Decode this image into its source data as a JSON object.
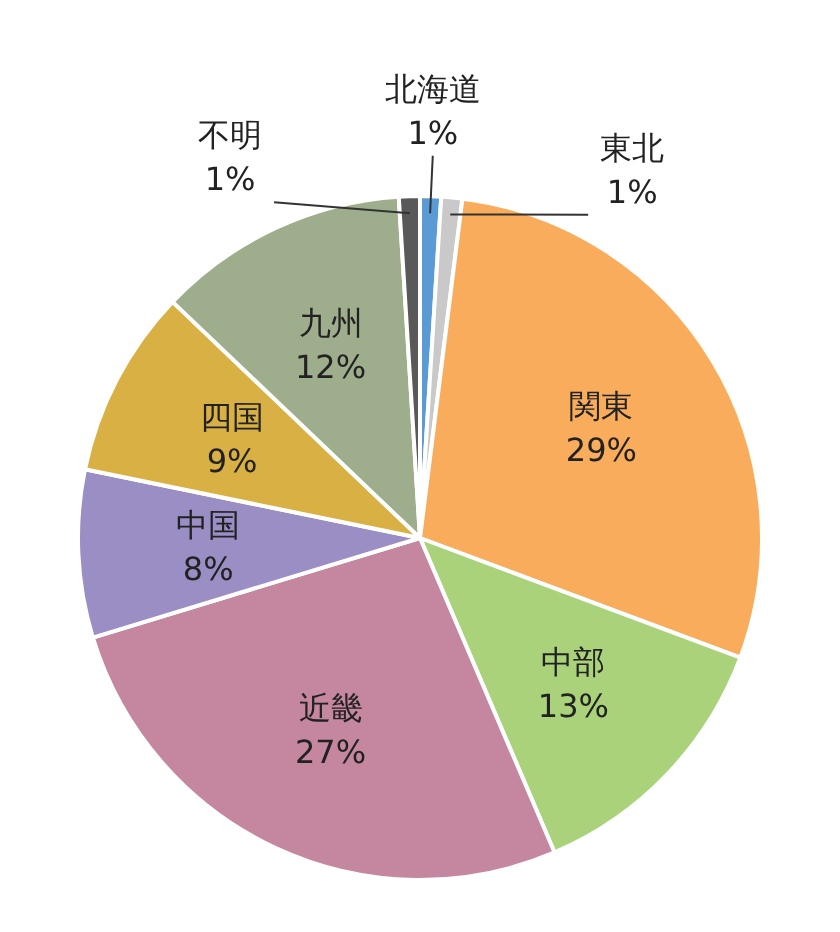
{
  "chart_data": {
    "type": "pie",
    "categories": [
      "北海道",
      "東北",
      "関東",
      "中部",
      "近畿",
      "中国",
      "四国",
      "九州",
      "不明"
    ],
    "values": [
      1,
      1,
      29,
      13,
      27,
      8,
      9,
      12,
      1
    ],
    "value_labels": [
      "1%",
      "1%",
      "29%",
      "13%",
      "27%",
      "8%",
      "9%",
      "12%",
      "1%"
    ],
    "colors": [
      "#5b9bd5",
      "#c9c9c9",
      "#f9ad5c",
      "#a9d27a",
      "#c4879f",
      "#9b8ec4",
      "#d9b044",
      "#9eae8c",
      "#595959"
    ],
    "legend": false
  }
}
